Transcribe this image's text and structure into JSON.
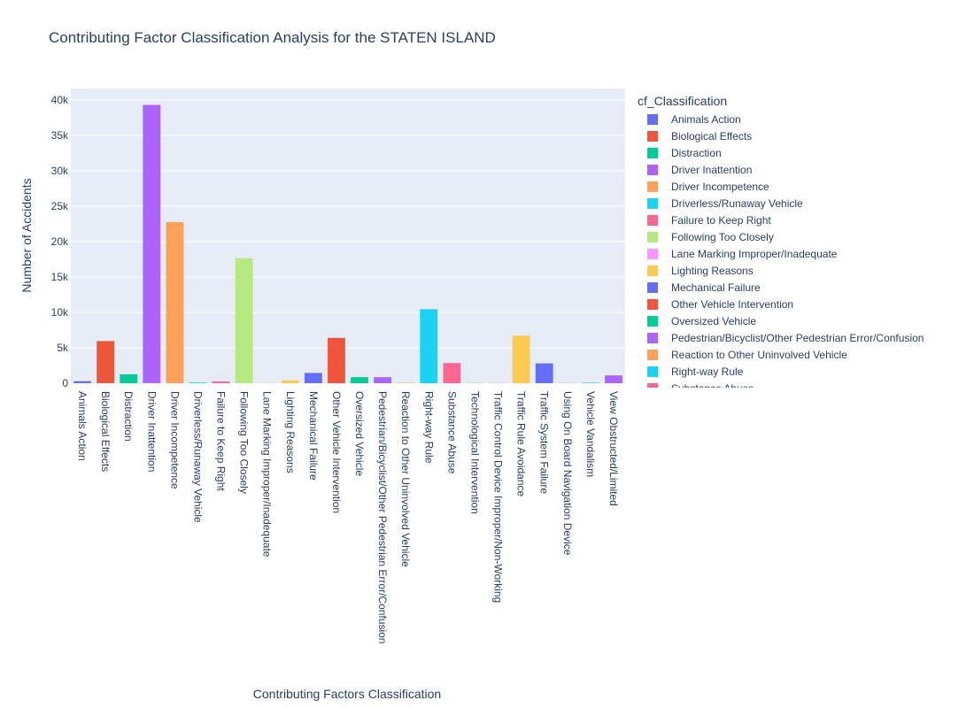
{
  "chart_data": {
    "type": "bar",
    "title": "Contributing Factor Classification Analysis for the STATEN ISLAND",
    "xlabel": "Contributing Factors Classification",
    "ylabel": "Number of Accidents",
    "ylim": [
      0,
      40000
    ],
    "yticks": [
      0,
      5000,
      10000,
      15000,
      20000,
      25000,
      30000,
      35000,
      40000
    ],
    "ytick_labels": [
      "0",
      "5k",
      "10k",
      "15k",
      "20k",
      "25k",
      "30k",
      "35k",
      "40k"
    ],
    "grid": true,
    "legend_title": "cf_Classification",
    "legend_position": "right",
    "categories": [
      "Animals Action",
      "Biological Effects",
      "Distraction",
      "Driver Inattention",
      "Driver Incompetence",
      "Driverless/Runaway Vehicle",
      "Failure to Keep Right",
      "Following Too Closely",
      "Lane Marking Improper/Inadequate",
      "Lighting Reasons",
      "Mechanical Failure",
      "Other Vehicle Intervention",
      "Oversized Vehicle",
      "Pedestrian/Bicyclist/Other Pedestrian Error/Confusion",
      "Reaction to Other Uninvolved Vehicle",
      "Right-way Rule",
      "Substance Abuse",
      "Technological Intervention",
      "Traffic Control Device Improper/Non-Working",
      "Traffic Rule Avoidance",
      "Traffic System Failure",
      "Using On Board Navigation Device",
      "Vehicle Vandalism",
      "View Obstructed/Limited"
    ],
    "values": [
      280,
      5950,
      1250,
      39300,
      22750,
      100,
      250,
      17650,
      30,
      400,
      1450,
      6400,
      850,
      850,
      60,
      10450,
      2850,
      80,
      40,
      6700,
      2800,
      20,
      60,
      1100
    ],
    "colors": [
      "#636efa",
      "#EF553B",
      "#00cc96",
      "#ab63fa",
      "#FFA15A",
      "#19d3f3",
      "#FF6692",
      "#B6E880",
      "#FF97FF",
      "#FECB52",
      "#636efa",
      "#EF553B",
      "#00cc96",
      "#ab63fa",
      "#FFA15A",
      "#19d3f3",
      "#FF6692",
      "#B6E880",
      "#FF97FF",
      "#FECB52",
      "#636efa",
      "#EF553B",
      "#00cc96",
      "#ab63fa"
    ],
    "plot_background": "#E5ECF6",
    "grid_color": "#ffffff",
    "text_color": "#2a3f5f"
  }
}
